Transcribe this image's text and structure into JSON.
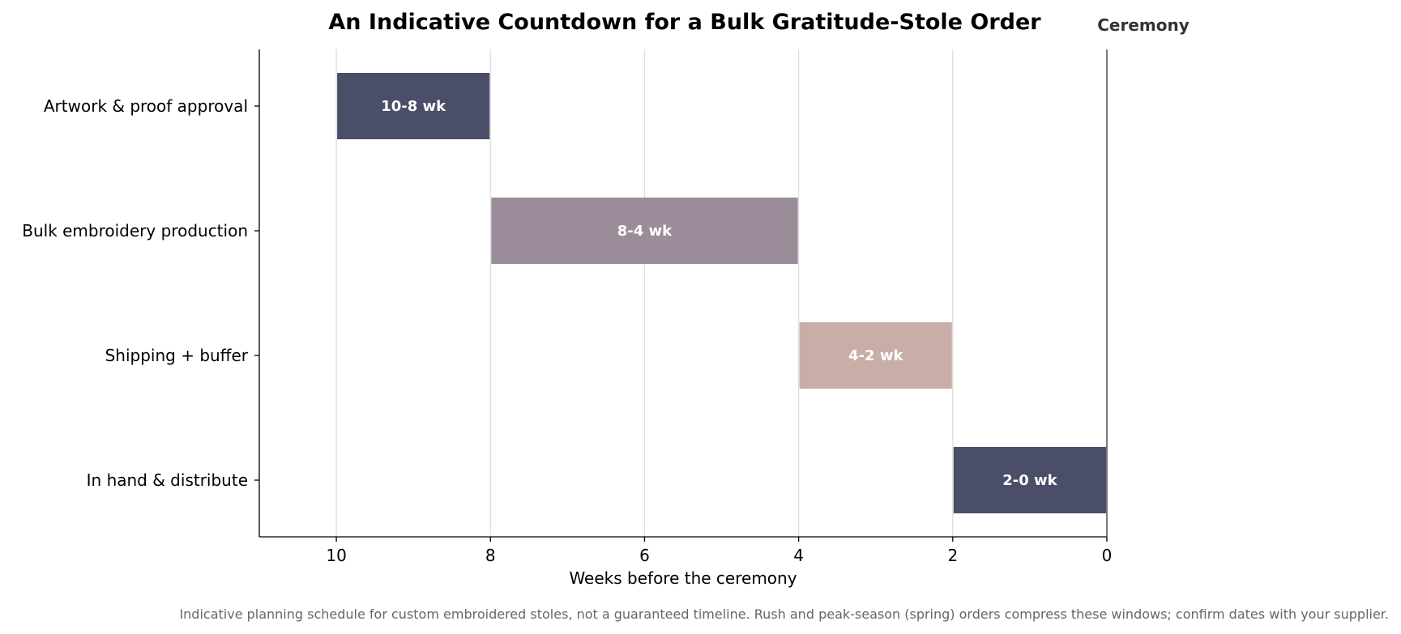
{
  "chart_data": {
    "type": "bar",
    "orientation": "horizontal",
    "title": "An Indicative Countdown for a Bulk Gratitude-Stole Order",
    "xlabel": "Weeks before the ceremony",
    "ylabel": "",
    "xlim": [
      11,
      0
    ],
    "x_axis_reversed": true,
    "xticks": [
      10,
      8,
      6,
      4,
      2,
      0
    ],
    "grid": "vertical gridlines on",
    "marker": {
      "value": 0,
      "label": "Ceremony"
    },
    "categories": [
      "Artwork & proof approval",
      "Bulk embroidery production",
      "Shipping + buffer",
      "In hand & distribute"
    ],
    "bars": [
      {
        "category": "Artwork & proof approval",
        "start": 10,
        "end": 8,
        "label": "10-8 wk",
        "color": "#4a4e69"
      },
      {
        "category": "Bulk embroidery production",
        "start": 8,
        "end": 4,
        "label": "8-4 wk",
        "color": "#9a8c98"
      },
      {
        "category": "Shipping + buffer",
        "start": 4,
        "end": 2,
        "label": "4-2 wk",
        "color": "#c9ada7"
      },
      {
        "category": "In hand & distribute",
        "start": 2,
        "end": 0,
        "label": "2-0 wk",
        "color": "#4a4e69"
      }
    ],
    "footnote": "Indicative planning schedule for custom embroidered stoles, not a guaranteed timeline. Rush and peak-season (spring) orders compress these windows; confirm dates with your supplier."
  }
}
